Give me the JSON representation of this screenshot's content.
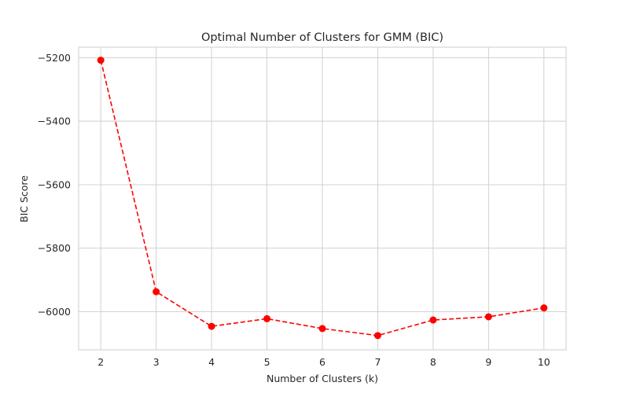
{
  "chart_data": {
    "type": "line",
    "title": "Optimal Number of Clusters for GMM (BIC)",
    "xlabel": "Number of Clusters (k)",
    "ylabel": "BIC Score",
    "x": [
      2,
      3,
      4,
      5,
      6,
      7,
      8,
      9,
      10
    ],
    "series": [
      {
        "values": [
          -5208,
          -5937,
          -6046,
          -6022,
          -6053,
          -6075,
          -6026,
          -6016,
          -5988
        ],
        "color": "#ff0000",
        "line_style": "dashed",
        "marker": "circle"
      }
    ],
    "xlim": [
      1.6,
      10.4
    ],
    "ylim": [
      -6120,
      -5167
    ],
    "xticks": [
      2,
      3,
      4,
      5,
      6,
      7,
      8,
      9,
      10
    ],
    "xtick_labels": [
      "2",
      "3",
      "4",
      "5",
      "6",
      "7",
      "8",
      "9",
      "10"
    ],
    "yticks": [
      -6000,
      -5800,
      -5600,
      -5400,
      -5200
    ],
    "ytick_labels": [
      "−6000",
      "−5800",
      "−5600",
      "−5400",
      "−5200"
    ],
    "grid": true,
    "legend": "none"
  }
}
